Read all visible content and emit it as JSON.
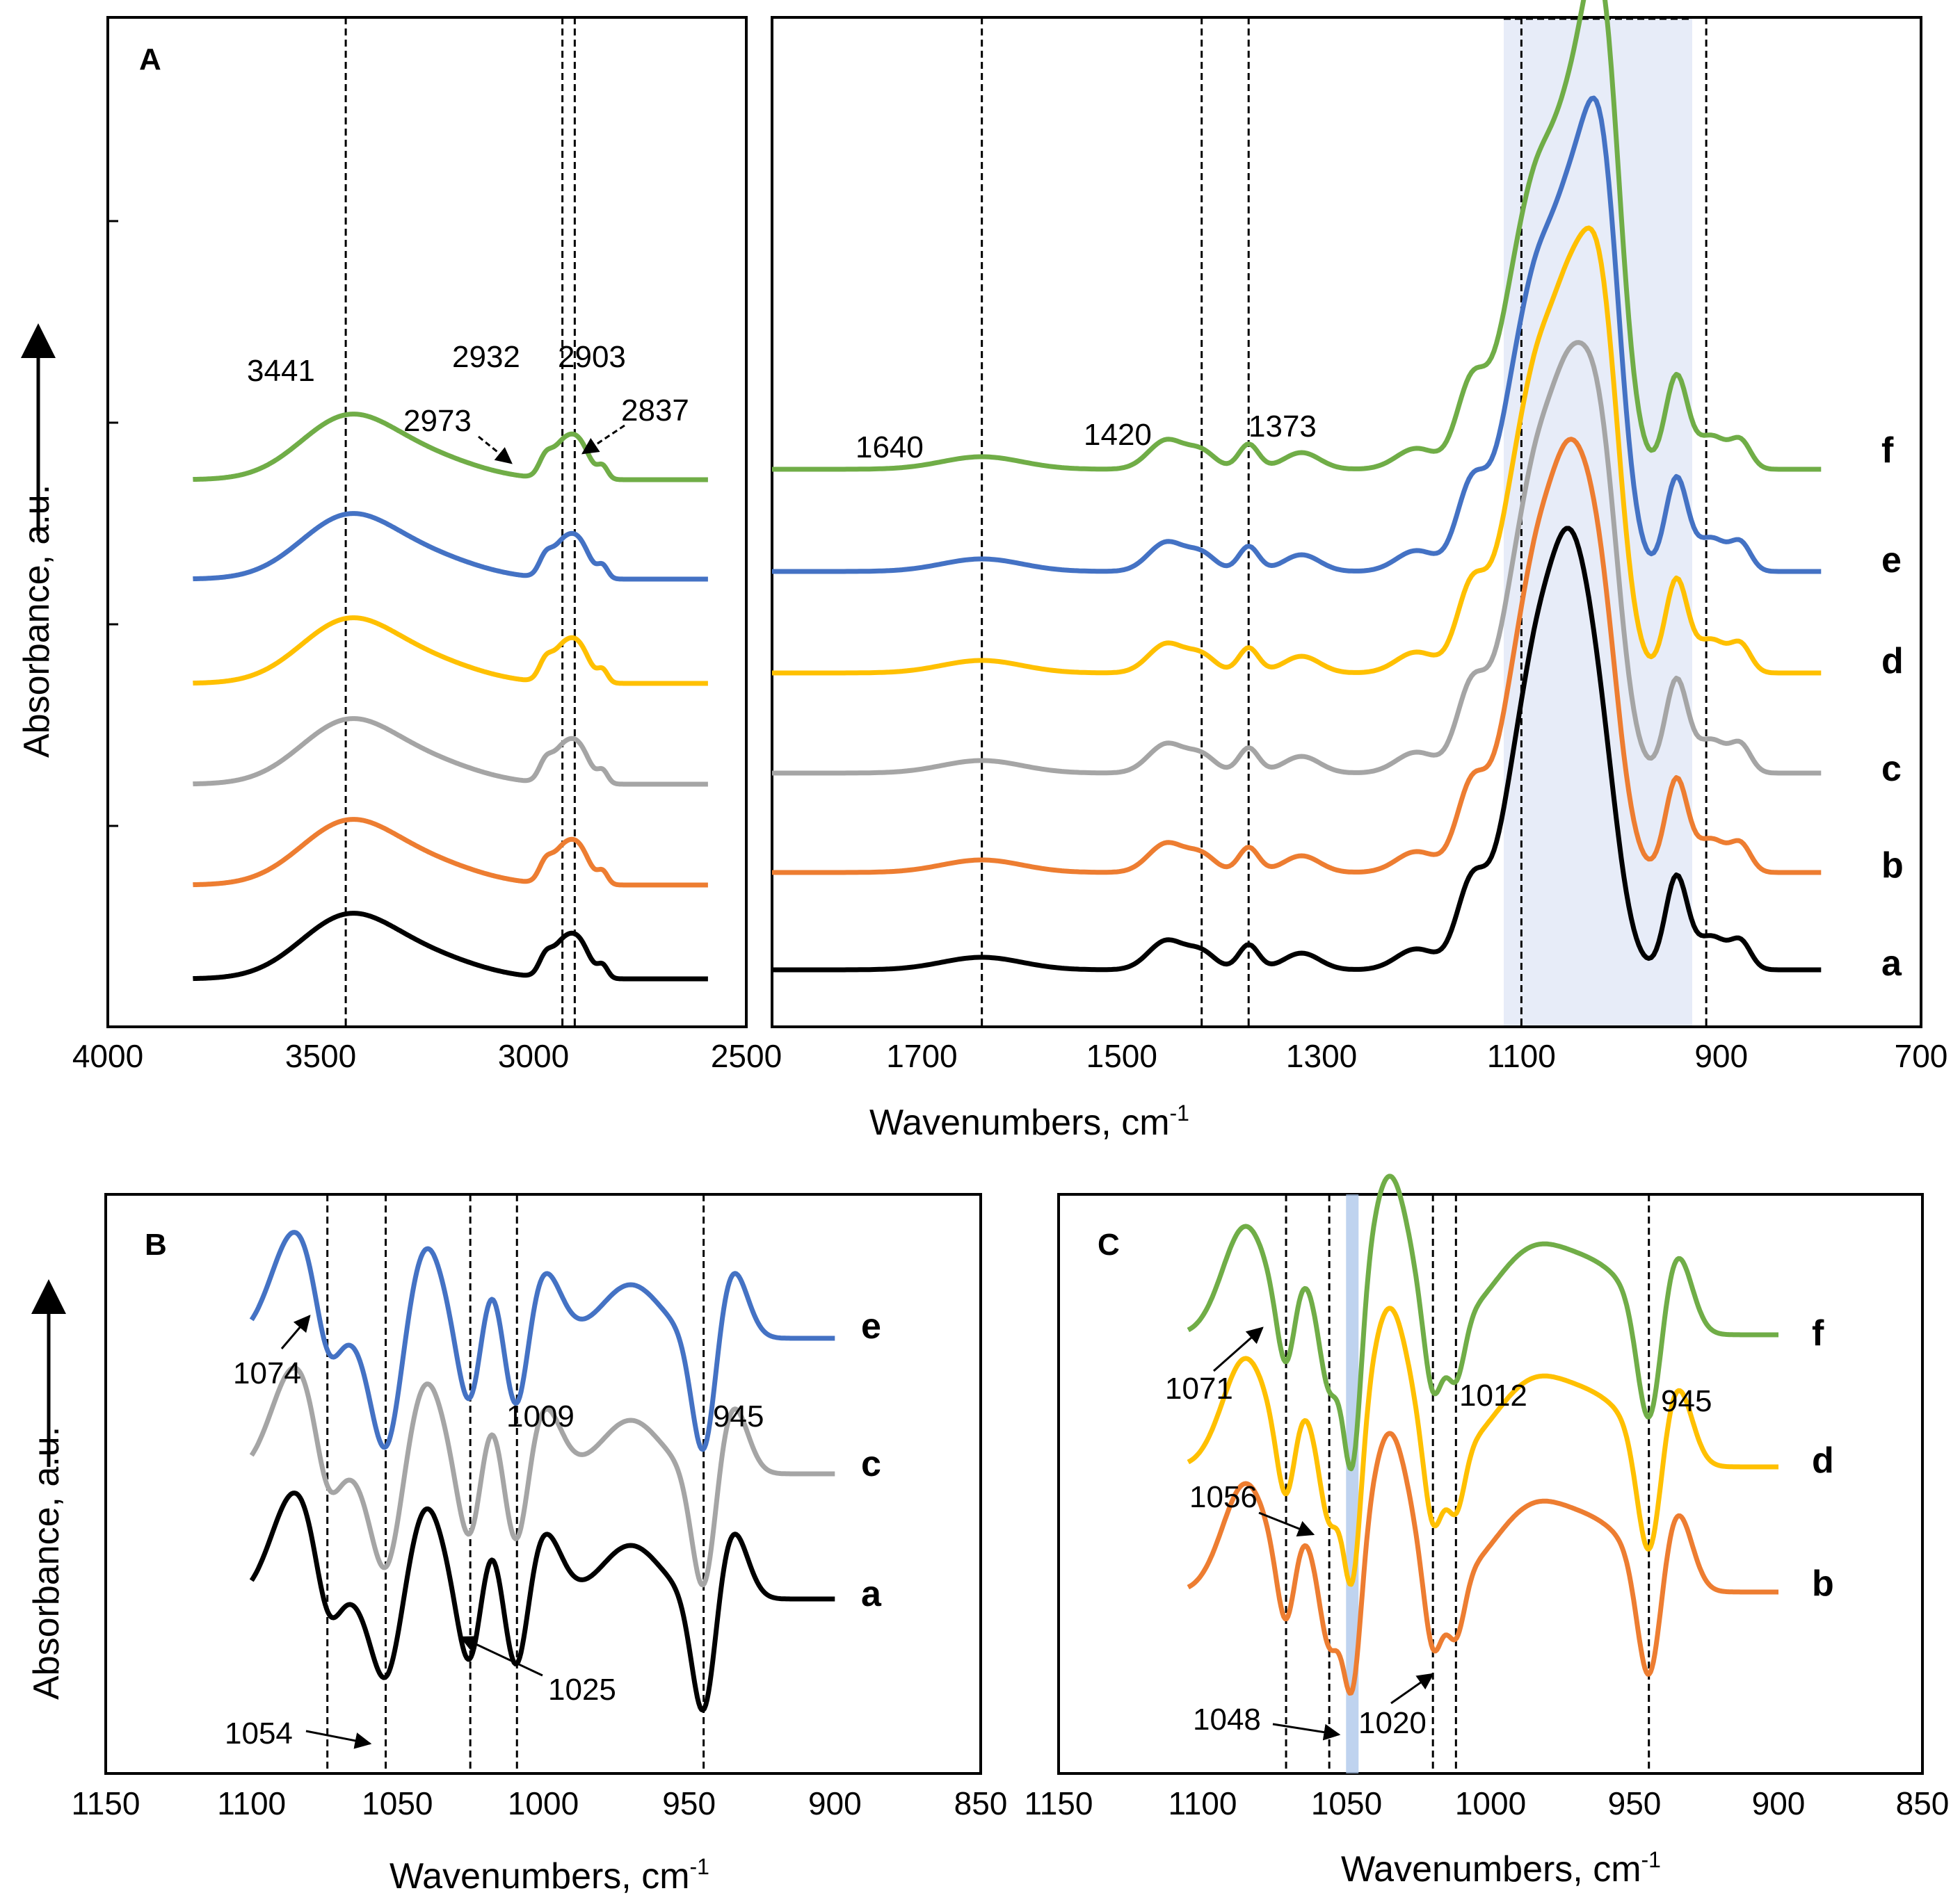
{
  "figure": {
    "y_axis_label": "Absorbance, a.u.",
    "x_axis_label_base": "Wavenumbers, cm",
    "x_axis_label_sup": "-1"
  },
  "chart_data": [
    {
      "id": "A_left",
      "panel": "A",
      "type": "line",
      "xlim": [
        4000,
        2500
      ],
      "ticks": [
        "4000",
        "3500",
        "3000",
        "2500"
      ],
      "tick_values": [
        4000,
        3500,
        3000,
        2500
      ],
      "vlines": [
        3441,
        2932,
        2903
      ],
      "peak_labels": [
        {
          "text": "3441",
          "x": 3441
        },
        {
          "text": "2932",
          "x": 2932
        },
        {
          "text": "2903",
          "x": 2903
        },
        {
          "text": "2973",
          "x": 2973
        },
        {
          "text": "2837",
          "x": 2837
        }
      ],
      "series": [
        {
          "name": "a",
          "color": "#000000"
        },
        {
          "name": "b",
          "color": "#ED7D31"
        },
        {
          "name": "c",
          "color": "#A5A5A5"
        },
        {
          "name": "d",
          "color": "#FFC000"
        },
        {
          "name": "e",
          "color": "#4472C4"
        },
        {
          "name": "f",
          "color": "#70AD47"
        }
      ]
    },
    {
      "id": "A_right",
      "panel": "A",
      "type": "line",
      "xlim": [
        1850,
        700
      ],
      "ticks": [
        "1700",
        "1500",
        "1300",
        "1100",
        "900",
        "700"
      ],
      "tick_values": [
        1700,
        1500,
        1300,
        1100,
        900,
        700
      ],
      "vlines": [
        1640,
        1420,
        1373,
        1100,
        915
      ],
      "shaded_region": [
        1100,
        915
      ],
      "peak_labels": [
        {
          "text": "1640",
          "x": 1640
        },
        {
          "text": "1420",
          "x": 1420
        },
        {
          "text": "1373",
          "x": 1373
        }
      ],
      "series": [
        {
          "name": "a",
          "color": "#000000"
        },
        {
          "name": "b",
          "color": "#ED7D31"
        },
        {
          "name": "c",
          "color": "#A5A5A5"
        },
        {
          "name": "d",
          "color": "#FFC000"
        },
        {
          "name": "e",
          "color": "#4472C4"
        },
        {
          "name": "f",
          "color": "#70AD47"
        }
      ]
    },
    {
      "id": "B",
      "panel": "B",
      "type": "line",
      "xlim": [
        1150,
        850
      ],
      "ticks": [
        "1150",
        "1100",
        "1050",
        "1000",
        "950",
        "900",
        "850"
      ],
      "tick_values": [
        1150,
        1100,
        1050,
        1000,
        950,
        900,
        850
      ],
      "vlines": [
        1074,
        1054,
        1025,
        1009,
        945
      ],
      "peak_labels": [
        {
          "text": "1074",
          "x": 1074
        },
        {
          "text": "1009",
          "x": 1009
        },
        {
          "text": "945",
          "x": 945
        },
        {
          "text": "1025",
          "x": 1025
        },
        {
          "text": "1054",
          "x": 1054
        }
      ],
      "series": [
        {
          "name": "a",
          "color": "#000000"
        },
        {
          "name": "c",
          "color": "#A5A5A5"
        },
        {
          "name": "e",
          "color": "#4472C4"
        }
      ]
    },
    {
      "id": "C",
      "panel": "C",
      "type": "line",
      "xlim": [
        1150,
        850
      ],
      "ticks": [
        "1150",
        "1100",
        "1050",
        "1000",
        "950",
        "900",
        "850"
      ],
      "tick_values": [
        1150,
        1100,
        1050,
        1000,
        950,
        900,
        850
      ],
      "vlines": [
        1071,
        1056,
        1020,
        1012,
        945
      ],
      "highlight_line": 1048,
      "peak_labels": [
        {
          "text": "1071",
          "x": 1071
        },
        {
          "text": "1012",
          "x": 1012
        },
        {
          "text": "945",
          "x": 945
        },
        {
          "text": "1056",
          "x": 1056
        },
        {
          "text": "1048",
          "x": 1048
        },
        {
          "text": "1020",
          "x": 1020
        }
      ],
      "series": [
        {
          "name": "b",
          "color": "#ED7D31"
        },
        {
          "name": "d",
          "color": "#FFC000"
        },
        {
          "name": "f",
          "color": "#70AD47"
        }
      ]
    }
  ]
}
